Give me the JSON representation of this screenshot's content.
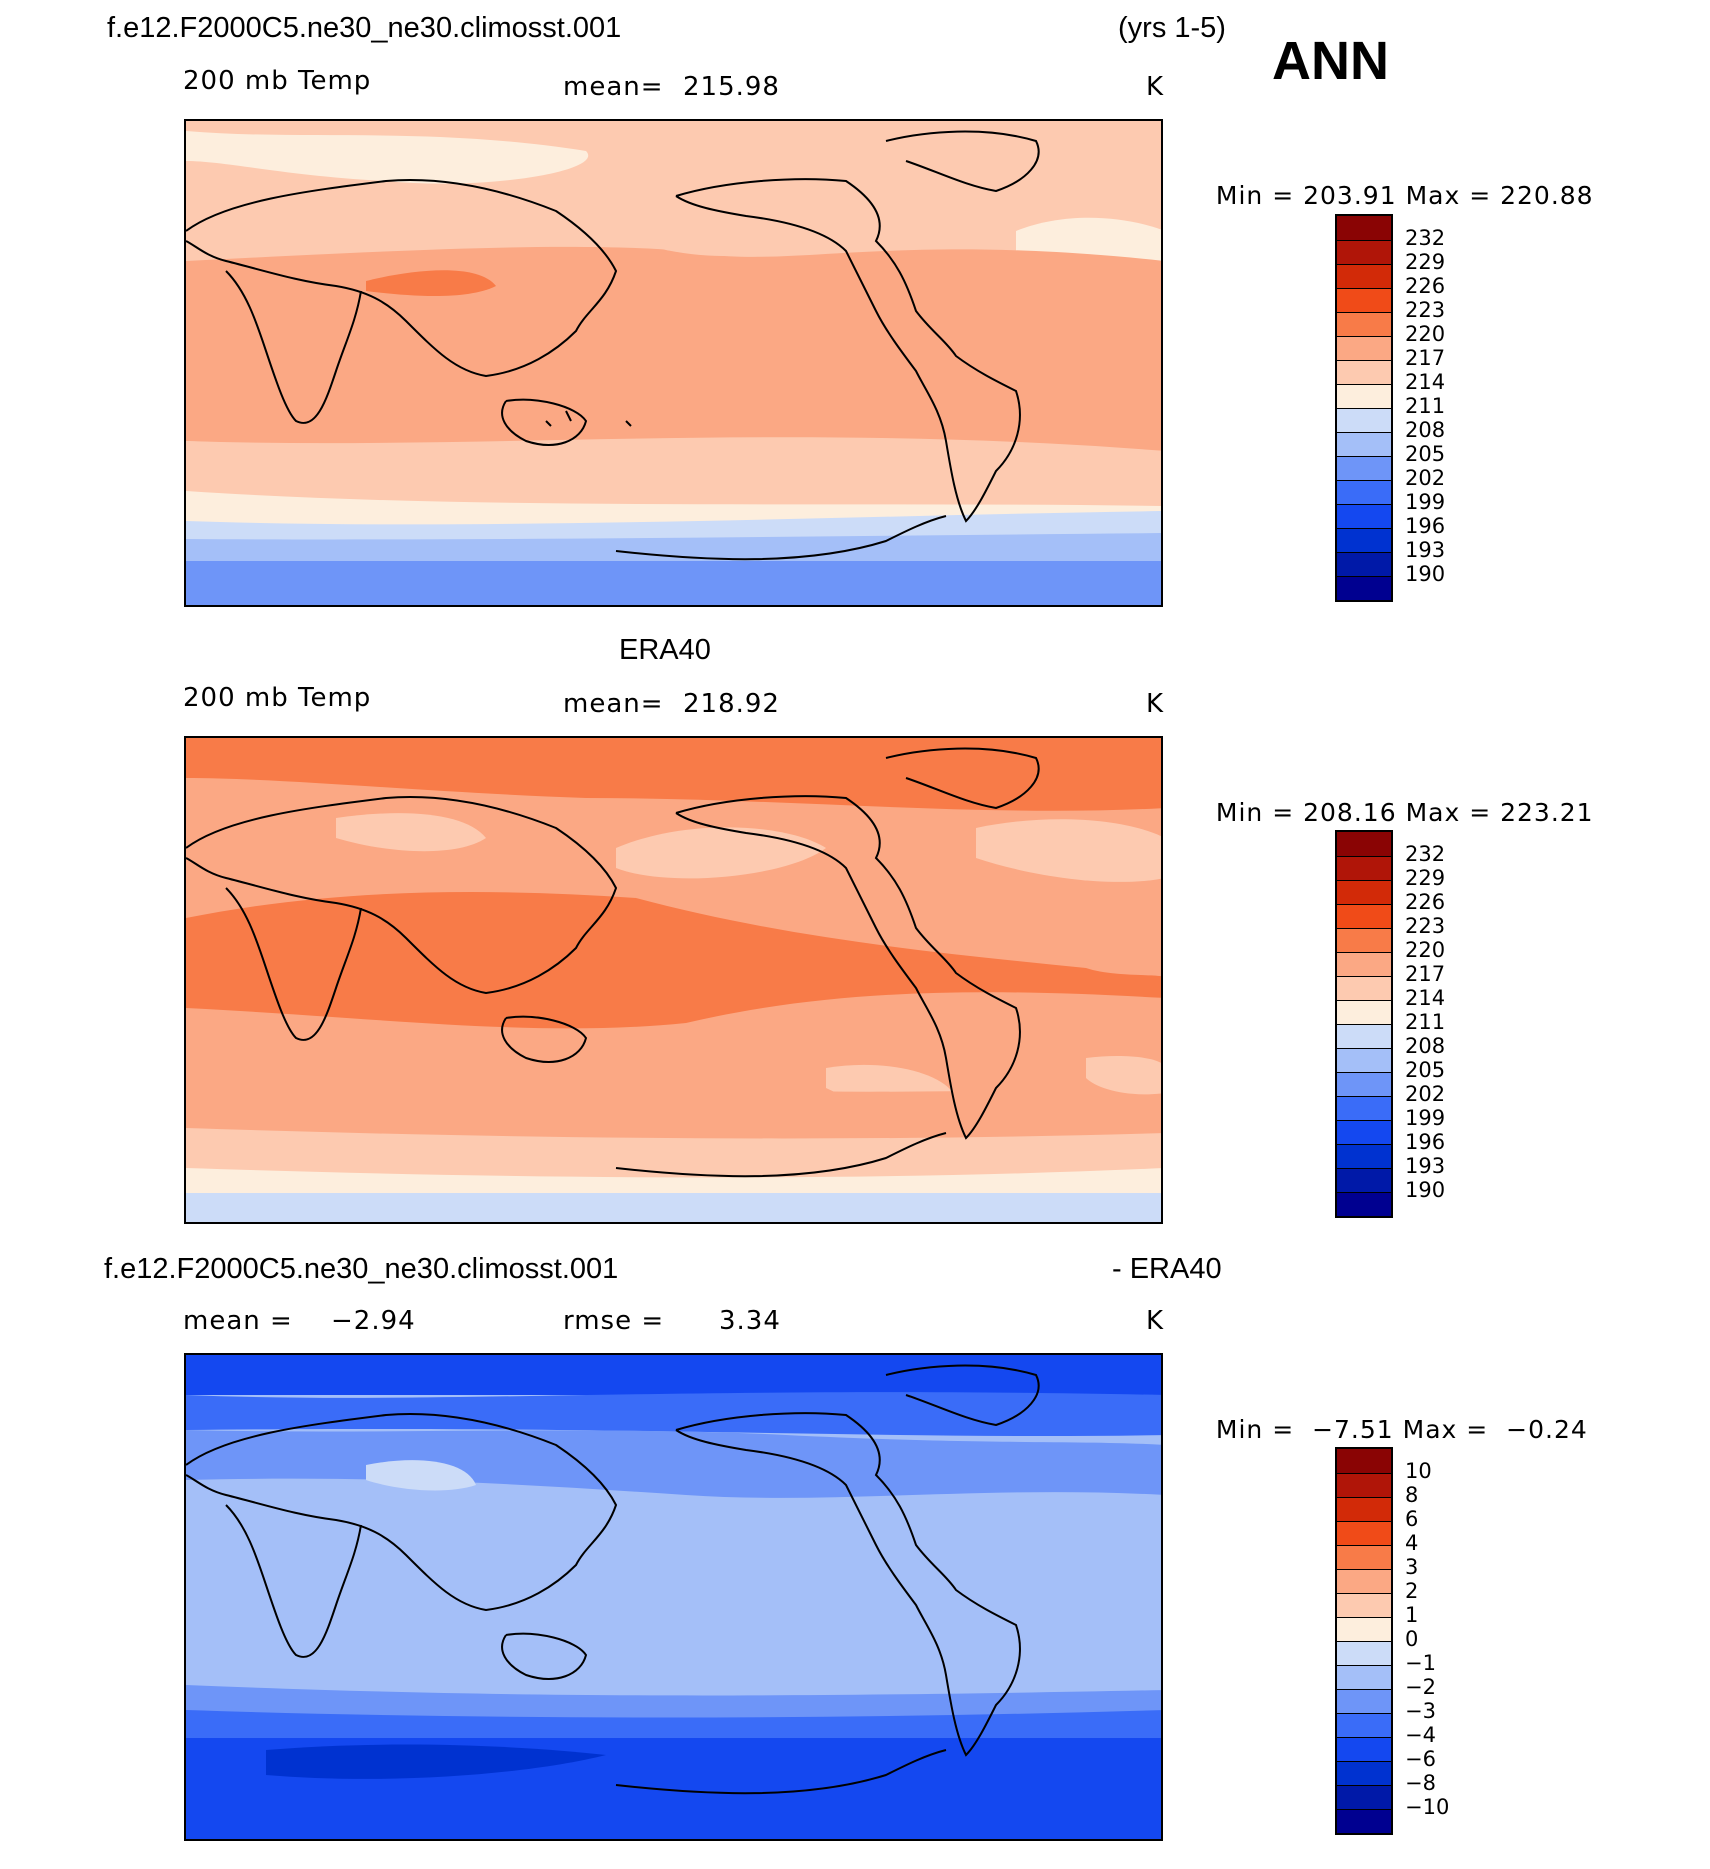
{
  "header": {
    "case_name": "f.e12.F2000C5.ne30_ne30.climosst.001",
    "years": "(yrs 1-5)",
    "season": "ANN"
  },
  "colors": {
    "warm_scale": [
      "#000090",
      "#0019a8",
      "#0032d0",
      "#1448f0",
      "#3a6cf8",
      "#6e95f8",
      "#a4bff8",
      "#ccdcf8",
      "#fdeedd",
      "#fdcab0",
      "#fba884",
      "#f87b48",
      "#f04b18",
      "#d22a08",
      "#b01508",
      "#8a0404"
    ],
    "coastline": "#000000"
  },
  "panels": [
    {
      "id": "model",
      "title": "",
      "variable": "200 mb Temp",
      "mean_label": "mean=",
      "mean_value": "215.98",
      "units": "K",
      "min_label": "Min =",
      "min_value": "203.91",
      "max_label": "Max =",
      "max_value": "220.88"
    },
    {
      "id": "obs",
      "title": "ERA40",
      "variable": "200 mb Temp",
      "mean_label": "mean=",
      "mean_value": "218.92",
      "units": "K",
      "min_label": "Min =",
      "min_value": "208.16",
      "max_label": "Max =",
      "max_value": "223.21"
    },
    {
      "id": "diff",
      "title_left": "f.e12.F2000C5.ne30_ne30.climosst.001",
      "title_right": "- ERA40",
      "mean_label": "mean =",
      "mean_value": "−2.94",
      "rmse_label": "rmse =",
      "rmse_value": "3.34",
      "units": "K",
      "min_label": "Min =",
      "min_value": "−7.51",
      "max_label": "Max =",
      "max_value": "−0.24"
    }
  ],
  "chart_data": [
    {
      "type": "heatmap",
      "title": "f.e12.F2000C5.ne30_ne30.climosst.001",
      "subtitle": "200 mb Temp",
      "units": "K",
      "mean": 215.98,
      "min": 203.91,
      "max": 220.88,
      "colorbar_levels": [
        232,
        229,
        226,
        223,
        220,
        217,
        214,
        211,
        208,
        205,
        202,
        199,
        196,
        193,
        190
      ],
      "zonal_bands": [
        {
          "region": "north polar",
          "level_band": "214-217"
        },
        {
          "region": "northern midlatitudes",
          "level_band": "214-217"
        },
        {
          "region": "tropics",
          "level_band": "217-220"
        },
        {
          "region": "southern midlatitudes",
          "level_band": "211-214"
        },
        {
          "region": "south polar",
          "level_band": "202-208"
        }
      ]
    },
    {
      "type": "heatmap",
      "title": "ERA40",
      "subtitle": "200 mb Temp",
      "units": "K",
      "mean": 218.92,
      "min": 208.16,
      "max": 223.21,
      "colorbar_levels": [
        232,
        229,
        226,
        223,
        220,
        217,
        214,
        211,
        208,
        205,
        202,
        199,
        196,
        193,
        190
      ],
      "zonal_bands": [
        {
          "region": "north polar",
          "level_band": "220-223"
        },
        {
          "region": "northern midlatitudes",
          "level_band": "217-220"
        },
        {
          "region": "tropics",
          "level_band": "220-223"
        },
        {
          "region": "southern midlatitudes",
          "level_band": "217-220"
        },
        {
          "region": "south polar",
          "level_band": "208-211"
        }
      ]
    },
    {
      "type": "heatmap",
      "title": "f.e12.F2000C5.ne30_ne30.climosst.001 - ERA40",
      "units": "K",
      "mean": -2.94,
      "rmse": 3.34,
      "min": -7.51,
      "max": -0.24,
      "colorbar_levels": [
        10,
        8,
        6,
        4,
        3,
        2,
        1,
        0,
        -1,
        -2,
        -3,
        -4,
        -6,
        -8,
        -10
      ],
      "zonal_bands": [
        {
          "region": "north polar",
          "level_band": "-6 to -4"
        },
        {
          "region": "northern midlatitudes",
          "level_band": "-3 to -2"
        },
        {
          "region": "tropics",
          "level_band": "-2 to -1"
        },
        {
          "region": "southern midlatitudes",
          "level_band": "-4 to -3"
        },
        {
          "region": "south polar",
          "level_band": "-8 to -6"
        }
      ]
    }
  ],
  "colorbars": {
    "temp_labels": [
      "232",
      "229",
      "226",
      "223",
      "220",
      "217",
      "214",
      "211",
      "208",
      "205",
      "202",
      "199",
      "196",
      "193",
      "190"
    ],
    "diff_labels": [
      "10",
      "8",
      "6",
      "4",
      "3",
      "2",
      "1",
      "0",
      "−1",
      "−2",
      "−3",
      "−4",
      "−6",
      "−8",
      "−10"
    ]
  }
}
